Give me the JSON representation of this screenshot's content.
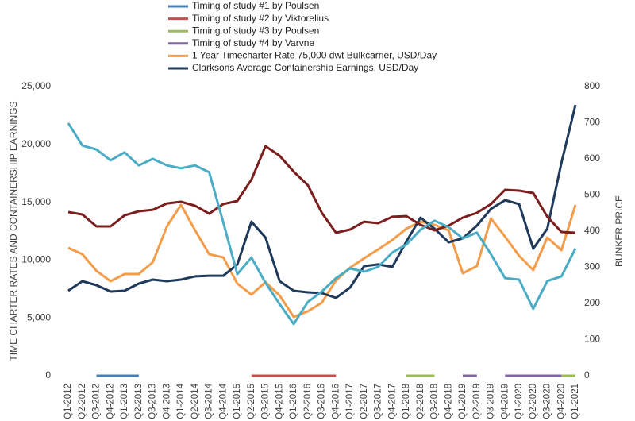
{
  "chart_data": {
    "type": "line",
    "ylabel": "TIME CHARTER RATES AND CONTAINERSHIP EARNINGS",
    "y2label": "BUNKER PRICE",
    "categories": [
      "Q1-2012",
      "Q2-2012",
      "Q3-2012",
      "Q4-2012",
      "Q1-2013",
      "Q2-2013",
      "Q3-2013",
      "Q4-2013",
      "Q1-2014",
      "Q2-2014",
      "Q3-2014",
      "Q4-2014",
      "Q1-2015",
      "Q2-2015",
      "Q3-2015",
      "Q4-2015",
      "Q1-2016",
      "Q2-2016",
      "Q3-2016",
      "Q4-2016",
      "Q1-2017",
      "Q2-2017",
      "Q3-2017",
      "Q4-2017",
      "Q1-2018",
      "Q2-2018",
      "Q3-2018",
      "Q4-2018",
      "Q1-2019",
      "Q2-2019",
      "Q3-2019",
      "Q4-2019",
      "Q1-2020",
      "Q2-2020",
      "Q3-2020",
      "Q4-2020",
      "Q1-2021"
    ],
    "ylim": [
      0,
      25000
    ],
    "yticks": [
      0,
      {
        "value": 5000,
        "label": "5,000"
      },
      {
        "value": 10000,
        "label": "10,000"
      },
      {
        "value": 15000,
        "label": "15,000"
      },
      {
        "value": 20000,
        "label": "20,000"
      },
      {
        "value": 25000,
        "label": "25,000"
      }
    ],
    "y2lim": [
      0,
      800
    ],
    "y2ticks": [
      0,
      100,
      200,
      300,
      400,
      500,
      600,
      700,
      800
    ],
    "series": [
      {
        "name": "Timing of study #1 by Poulsen",
        "color": "#4a7fb5",
        "values": [
          null,
          null,
          0,
          0,
          0,
          0,
          null,
          null,
          null,
          null,
          null,
          null,
          null,
          null,
          null,
          null,
          null,
          null,
          null,
          null,
          null,
          null,
          null,
          null,
          null,
          null,
          null,
          null,
          null,
          null,
          null,
          null,
          null,
          null,
          null,
          null,
          null
        ]
      },
      {
        "name": "Timing of study #2 by Viktorelius",
        "color": "#c0504d",
        "values": [
          null,
          null,
          null,
          null,
          null,
          null,
          null,
          null,
          null,
          null,
          null,
          null,
          null,
          0,
          0,
          0,
          0,
          0,
          0,
          0,
          null,
          null,
          null,
          null,
          null,
          null,
          null,
          null,
          null,
          null,
          null,
          null,
          null,
          null,
          null,
          null,
          null
        ]
      },
      {
        "name": "Timing of study #3 by Poulsen",
        "color": "#9bbb59",
        "values": [
          null,
          null,
          null,
          null,
          null,
          null,
          null,
          null,
          null,
          null,
          null,
          null,
          null,
          null,
          null,
          null,
          null,
          null,
          null,
          null,
          null,
          null,
          null,
          null,
          0,
          0,
          0,
          null,
          null,
          null,
          null,
          null,
          null,
          null,
          null,
          0,
          0
        ]
      },
      {
        "name": "Timing of study #4 by Varvne",
        "color": "#8064a2",
        "values": [
          null,
          null,
          null,
          null,
          null,
          null,
          null,
          null,
          null,
          null,
          null,
          null,
          null,
          null,
          null,
          null,
          null,
          null,
          null,
          null,
          null,
          null,
          null,
          null,
          null,
          null,
          null,
          null,
          0,
          0,
          null,
          0,
          0,
          0,
          0,
          0,
          null
        ]
      },
      {
        "name": "1 Year Timecharter Rate 75,000 dwt Bulkcarrier, USD/Day",
        "color": "#f39c4a",
        "values": [
          11060,
          10510,
          9070,
          8170,
          8790,
          8790,
          9820,
          12910,
          14770,
          12570,
          10510,
          10230,
          7970,
          7010,
          8100,
          6940,
          5080,
          5560,
          6320,
          8240,
          9340,
          10160,
          10920,
          11740,
          12710,
          13320,
          13050,
          12570,
          8860,
          9480,
          13600,
          12020,
          10370,
          9130,
          11950,
          10850,
          14770
        ]
      },
      {
        "name": "Clarksons Average Containership Earnings, USD/Day",
        "color": "#1f3a5a",
        "values": [
          7350,
          8170,
          7830,
          7280,
          7350,
          7970,
          8310,
          8170,
          8310,
          8590,
          8650,
          8650,
          9620,
          13320,
          11950,
          8170,
          7350,
          7210,
          7140,
          6730,
          7620,
          9480,
          9620,
          9410,
          11610,
          13670,
          12710,
          11540,
          11880,
          12980,
          14420,
          15180,
          14840,
          10990,
          12710,
          18410,
          23420
        ]
      },
      {
        "color": "#7b1e1e",
        "values": [
          14150,
          13940,
          12910,
          12910,
          13870,
          14220,
          14350,
          14900,
          15040,
          14700,
          14010,
          14840,
          15110,
          16960,
          19850,
          19020,
          17650,
          16480,
          14080,
          12360,
          12640,
          13320,
          13190,
          13740,
          13800,
          13050,
          12570,
          12980,
          13670,
          14080,
          14840,
          16070,
          16000,
          15800,
          13740,
          12430,
          12360
        ]
      },
      {
        "color": "#4bacc6",
        "axis": "y2",
        "values": [
          699,
          637,
          626,
          596,
          618,
          582,
          600,
          582,
          574,
          582,
          563,
          424,
          281,
          327,
          257,
          198,
          143,
          204,
          233,
          270,
          297,
          288,
          301,
          341,
          363,
          404,
          429,
          411,
          380,
          396,
          336,
          270,
          266,
          185,
          262,
          275,
          352
        ]
      }
    ]
  }
}
